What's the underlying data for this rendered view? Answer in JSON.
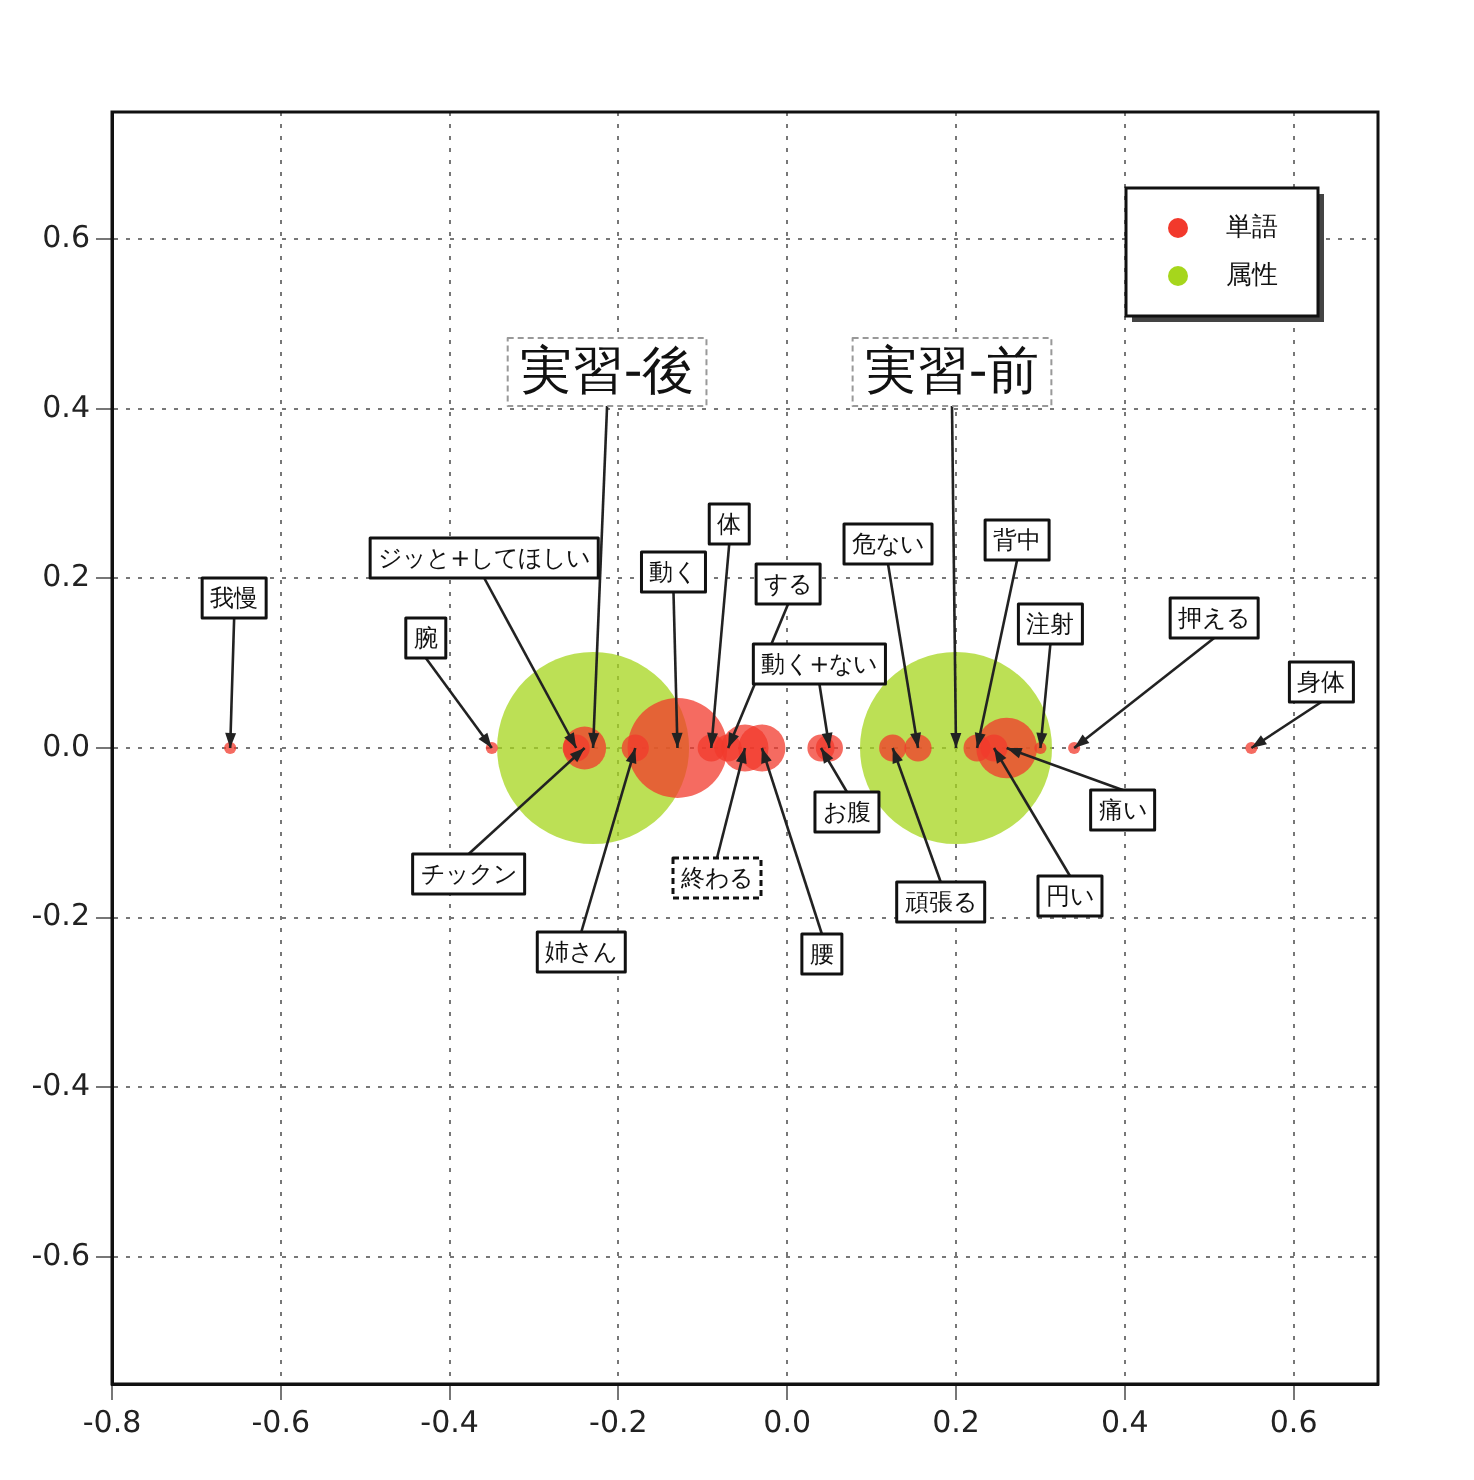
{
  "chart_data": {
    "type": "bubble",
    "legend": "top right",
    "grid": true,
    "marker": "circle",
    "xlim": [
      -0.8,
      0.7
    ],
    "xticks": [
      -0.8,
      -0.6,
      -0.4,
      -0.2,
      {
        "value": 0,
        "label": "0.0"
      },
      0.2,
      0.4,
      0.6
    ],
    "ylim": [
      -0.75,
      0.75
    ],
    "yticks": [
      -0.6,
      -0.4,
      -0.2,
      {
        "value": 0,
        "label": "0.0"
      },
      0.2,
      0.4,
      0.6
    ],
    "series": [
      {
        "name": "単語",
        "color": "#f2392c",
        "x": [
          -0.66,
          -0.35,
          -0.25,
          -0.24,
          -0.18,
          -0.13,
          -0.09,
          -0.07,
          -0.05,
          -0.03,
          0.04,
          0.05,
          0.125,
          0.155,
          0.225,
          0.245,
          0.26,
          0.3,
          0.34,
          0.55
        ],
        "values": [
          0,
          0,
          0,
          0,
          0,
          0,
          0,
          0,
          0,
          0,
          0,
          0,
          0,
          0,
          0,
          0,
          0,
          0,
          0,
          0
        ],
        "sizes": [
          0.004,
          0.004,
          0.02,
          0.05,
          0.02,
          0.27,
          0.02,
          0.02,
          0.06,
          0.06,
          0.02,
          0.02,
          0.02,
          0.02,
          0.02,
          0.02,
          0.1,
          0.004,
          0.004,
          0.004
        ]
      },
      {
        "name": "属性",
        "color": "#a6d61c",
        "x": [
          -0.23,
          0.2
        ],
        "values": [
          0,
          0
        ],
        "sizes": [
          1,
          1
        ]
      }
    ],
    "annotations": [
      {
        "text": "実習-後",
        "x": -0.23,
        "y": 0
      },
      {
        "text": "実習-前",
        "x": 0.2,
        "y": 0
      },
      {
        "text": "我慢",
        "x": -0.66,
        "y": 0
      },
      {
        "text": "ジッと+してほしい",
        "x": -0.25,
        "y": 0
      },
      {
        "text": "腕",
        "x": -0.35,
        "y": 0
      },
      {
        "text": "動く",
        "x": -0.13,
        "y": 0
      },
      {
        "text": "体",
        "x": -0.09,
        "y": 0
      },
      {
        "text": "する",
        "x": -0.07,
        "y": 0
      },
      {
        "text": "動く+ない",
        "x": 0.05,
        "y": 0
      },
      {
        "text": "危ない",
        "x": 0.155,
        "y": 0
      },
      {
        "text": "背中",
        "x": 0.225,
        "y": 0
      },
      {
        "text": "注射",
        "x": 0.3,
        "y": 0
      },
      {
        "text": "押える",
        "x": 0.34,
        "y": 0
      },
      {
        "text": "身体",
        "x": 0.55,
        "y": 0
      },
      {
        "text": "チックン",
        "x": -0.24,
        "y": 0
      },
      {
        "text": "姉さん",
        "x": -0.18,
        "y": 0
      },
      {
        "text": "終わる",
        "x": -0.05,
        "y": 0
      },
      {
        "text": "腰",
        "x": -0.03,
        "y": 0
      },
      {
        "text": "お腹",
        "x": 0.04,
        "y": 0
      },
      {
        "text": "頑張る",
        "x": 0.125,
        "y": 0
      },
      {
        "text": "円い",
        "x": 0.245,
        "y": 0
      },
      {
        "text": "痛い",
        "x": 0.26,
        "y": 0
      }
    ]
  }
}
